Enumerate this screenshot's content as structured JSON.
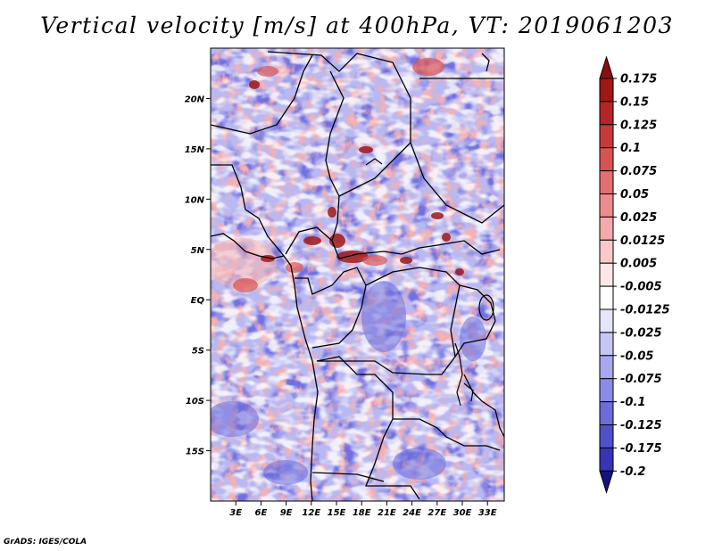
{
  "title": "Vertical velocity [m/s] at 400hPa, VT: 2019061203",
  "credit": "GrADS: IGES/COLA",
  "map": {
    "lon_range": [
      0,
      35
    ],
    "lat_range": [
      -20,
      25
    ],
    "lat_ticks": [
      {
        "value": 20,
        "label": "20N"
      },
      {
        "value": 15,
        "label": "15N"
      },
      {
        "value": 10,
        "label": "10N"
      },
      {
        "value": 5,
        "label": "5N"
      },
      {
        "value": 0,
        "label": "EQ"
      },
      {
        "value": -5,
        "label": "5S"
      },
      {
        "value": -10,
        "label": "10S"
      },
      {
        "value": -15,
        "label": "15S"
      }
    ],
    "lon_ticks": [
      {
        "value": 3,
        "label": "3E"
      },
      {
        "value": 6,
        "label": "6E"
      },
      {
        "value": 9,
        "label": "9E"
      },
      {
        "value": 12,
        "label": "12E"
      },
      {
        "value": 15,
        "label": "15E"
      },
      {
        "value": 18,
        "label": "18E"
      },
      {
        "value": 21,
        "label": "21E"
      },
      {
        "value": 24,
        "label": "24E"
      },
      {
        "value": 27,
        "label": "27E"
      },
      {
        "value": 30,
        "label": "30E"
      },
      {
        "value": 33,
        "label": "33E"
      }
    ]
  },
  "colorbar": {
    "levels": [
      {
        "label": "0.175",
        "color": "#a01818"
      },
      {
        "label": "0.15",
        "color": "#b52525"
      },
      {
        "label": "0.125",
        "color": "#c83a3a"
      },
      {
        "label": "0.1",
        "color": "#d95353"
      },
      {
        "label": "0.075",
        "color": "#e36e6e"
      },
      {
        "label": "0.05",
        "color": "#ec8c8c"
      },
      {
        "label": "0.025",
        "color": "#f4aaaa"
      },
      {
        "label": "0.0125",
        "color": "#f9c8c8"
      },
      {
        "label": "0.005",
        "color": "#fde6e6"
      },
      {
        "label": "-0.005",
        "color": "#ffffff"
      },
      {
        "label": "-0.0125",
        "color": "#e4e4fb"
      },
      {
        "label": "-0.025",
        "color": "#c6c6f6"
      },
      {
        "label": "-0.05",
        "color": "#a8a8f0"
      },
      {
        "label": "-0.075",
        "color": "#8a8ae8"
      },
      {
        "label": "-0.1",
        "color": "#6c6cdd"
      },
      {
        "label": "-0.125",
        "color": "#5050cc"
      },
      {
        "label": "-0.175",
        "color": "#3535b5"
      },
      {
        "label": "-0.2",
        "color": "#20209a"
      }
    ],
    "top_color": "#8a0f0f",
    "bottom_color": "#14147e"
  }
}
